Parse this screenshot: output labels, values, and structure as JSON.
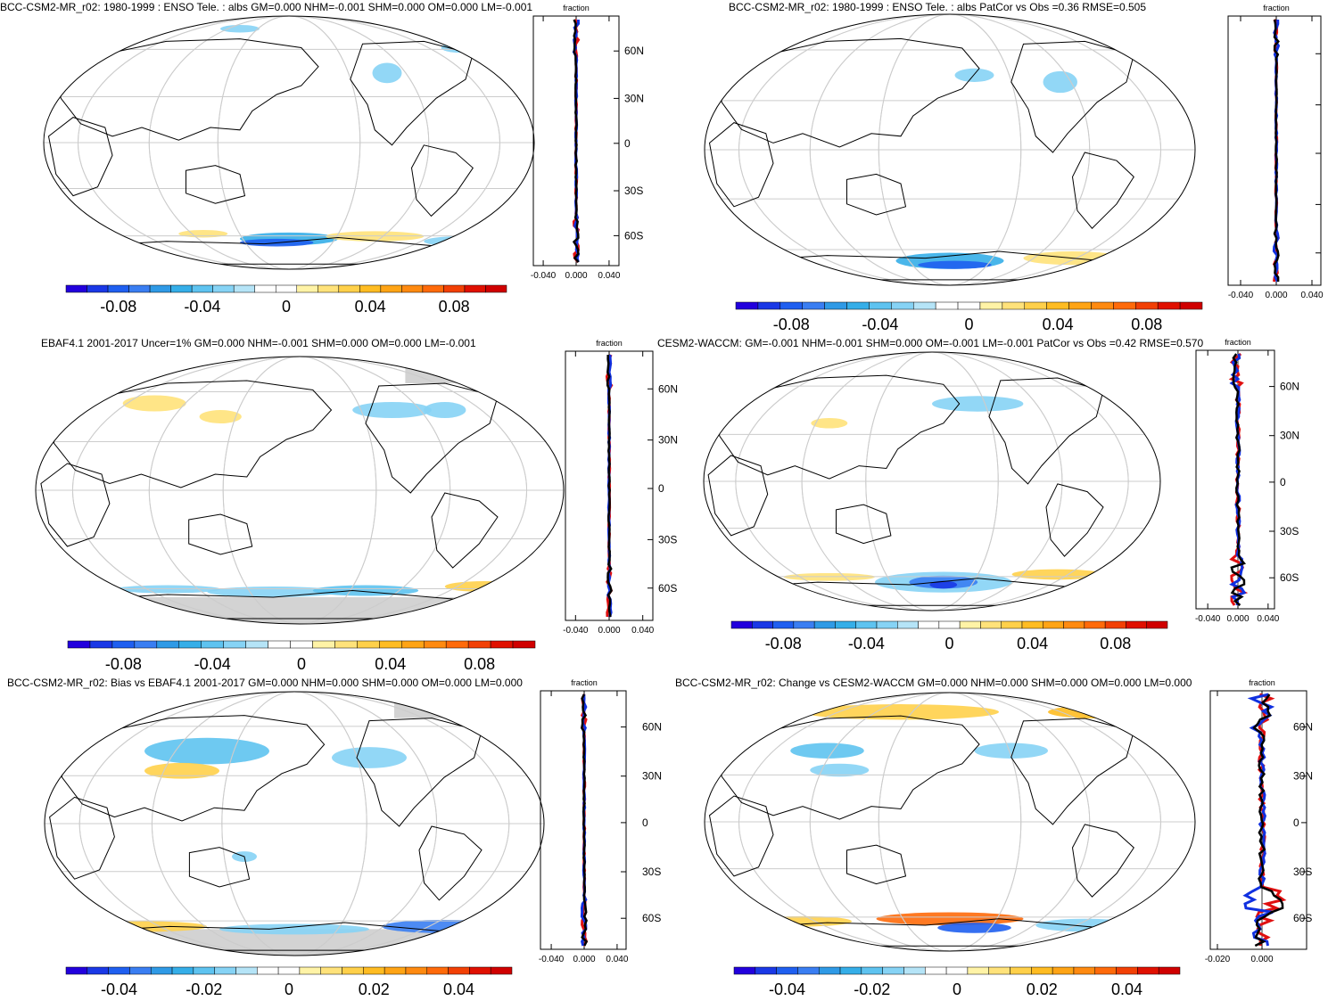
{
  "figure": {
    "panels": [
      {
        "id": "p1",
        "title": "BCC-CSM2-MR_r02: 1980-1999 : ENSO Tele. : albs GM=0.000 NHM=-0.001 SHM=0.000 OM=0.000 LM=-0.001",
        "colorbar_labels": [
          "-0.08",
          "-0.04",
          "0",
          "0.04",
          "0.08"
        ],
        "zonal_title": "fraction",
        "zonal_xticks": [
          "-0.040",
          "0.000",
          "0.040"
        ],
        "lat_labels": [
          "60N",
          "30N",
          "0",
          "30S",
          "60S"
        ]
      },
      {
        "id": "p2",
        "title": "BCC-CSM2-MR_r02: 1980-1999 : ENSO Tele. : albs PatCor vs Obs =0.36 RMSE=0.505",
        "colorbar_labels": [
          "-0.08",
          "-0.04",
          "0",
          "0.04",
          "0.08"
        ],
        "zonal_title": "fraction",
        "zonal_xticks": [
          "-0.040",
          "0.000",
          "0.040"
        ],
        "lat_labels": []
      },
      {
        "id": "p3",
        "title": "EBAF4.1 2001-2017 Uncer=1% GM=0.000 NHM=-0.001 SHM=0.000 OM=0.000 LM=-0.001",
        "colorbar_labels": [
          "-0.08",
          "-0.04",
          "0",
          "0.04",
          "0.08"
        ],
        "zonal_title": "fraction",
        "zonal_xticks": [
          "-0.040",
          "0.000",
          "0.040"
        ],
        "lat_labels": [
          "60N",
          "30N",
          "0",
          "30S",
          "60S"
        ]
      },
      {
        "id": "p4",
        "title": "CESM2-WACCM: GM=-0.001 NHM=-0.001 SHM=0.000 OM=-0.001 LM=-0.001 PatCor vs Obs =0.42 RMSE=0.570",
        "colorbar_labels": [
          "-0.08",
          "-0.04",
          "0",
          "0.04",
          "0.08"
        ],
        "zonal_title": "fraction",
        "zonal_xticks": [
          "-0.040",
          "0.000",
          "0.040"
        ],
        "lat_labels": [
          "60N",
          "30N",
          "0",
          "30S",
          "60S"
        ]
      },
      {
        "id": "p5",
        "title": "BCC-CSM2-MR_r02: Bias vs EBAF4.1 2001-2017 GM=0.000 NHM=0.000 SHM=0.000 OM=0.000 LM=0.000",
        "colorbar_labels": [
          "-0.04",
          "-0.02",
          "0",
          "0.02",
          "0.04"
        ],
        "zonal_title": "fraction",
        "zonal_xticks": [
          "-0.040",
          "0.000",
          "0.040"
        ],
        "lat_labels": [
          "60N",
          "30N",
          "0",
          "30S",
          "60S"
        ]
      },
      {
        "id": "p6",
        "title": "BCC-CSM2-MR_r02: Change vs CESM2-WACCM GM=0.000 NHM=0.000 SHM=0.000 OM=0.000 LM=0.000",
        "colorbar_labels": [
          "-0.04",
          "-0.02",
          "0",
          "0.02",
          "0.04"
        ],
        "zonal_title": "fraction",
        "zonal_xticks": [
          "-0.020",
          "0.000"
        ],
        "lat_labels": [
          "60N",
          "30N",
          "0",
          "30S",
          "60S"
        ]
      }
    ],
    "colors": {
      "colorbar": [
        "#2200dd",
        "#1a38e6",
        "#1f5ff0",
        "#3a7ef2",
        "#2f9ae6",
        "#35aee8",
        "#5ec3f0",
        "#86d3f5",
        "#b5e4f7",
        "#ffffff",
        "#ffffff",
        "#fff3a6",
        "#ffe27a",
        "#ffd04a",
        "#ffbc22",
        "#ffa415",
        "#ff8a10",
        "#ff6a0a",
        "#f24005",
        "#e01000",
        "#d00000"
      ],
      "land_outline": "#000000",
      "grid": "#cccccc",
      "missing": "#d3d3d3",
      "series_model": "#e01010",
      "series_obs": "#1030e0",
      "series_mean": "#000000"
    }
  }
}
